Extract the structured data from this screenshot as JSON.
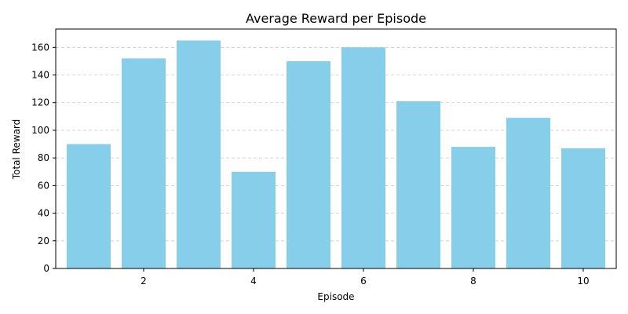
{
  "chart_data": {
    "type": "bar",
    "title": "Average Reward per Episode",
    "xlabel": "Episode",
    "ylabel": "Total Reward",
    "x": [
      1,
      2,
      3,
      4,
      5,
      6,
      7,
      8,
      9,
      10
    ],
    "values": [
      90,
      152,
      165,
      70,
      150,
      160,
      121,
      88,
      109,
      87
    ],
    "xticks": [
      2,
      4,
      6,
      8,
      10
    ],
    "yticks": [
      0,
      20,
      40,
      60,
      80,
      100,
      120,
      140,
      160
    ],
    "xlim": [
      0.4,
      10.6
    ],
    "ylim": [
      0,
      173.25
    ],
    "grid": "y-dashed",
    "bar_color": "#87CEEB",
    "grid_color": "#cccccc"
  }
}
